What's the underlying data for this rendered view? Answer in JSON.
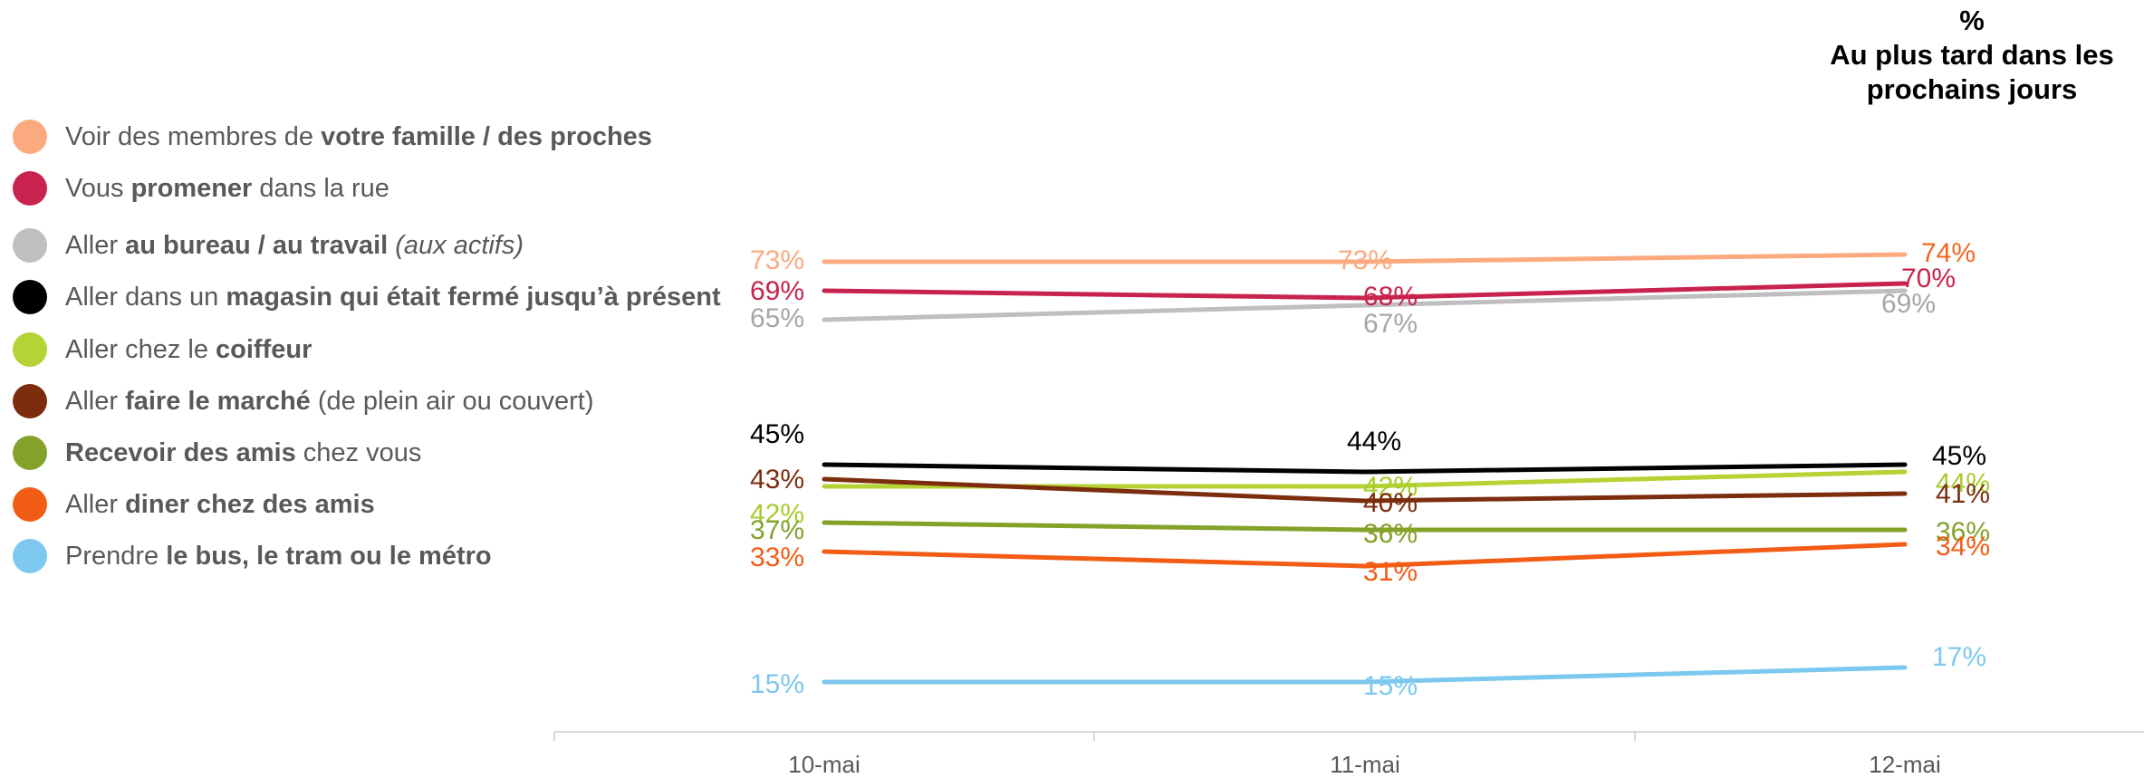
{
  "chart_data": {
    "type": "line",
    "title": "%",
    "subtitle": "Au plus tard dans les prochains jours",
    "categories": [
      "10-mai",
      "11-mai",
      "12-mai"
    ],
    "ylim": [
      0,
      80
    ],
    "grid": false,
    "legend_position": "left",
    "series": [
      {
        "name": "Voir des membres de votre famille / des proches",
        "name_parts": [
          [
            "Voir des membres de ",
            "normal"
          ],
          [
            "votre famille / des proches",
            "bold"
          ]
        ],
        "color": "#FBA97F",
        "values": [
          73,
          73,
          74
        ],
        "label_colors": [
          "#FBA97F",
          "#FBA97F",
          "#F4651E"
        ]
      },
      {
        "name": "Vous promener dans la rue",
        "name_parts": [
          [
            "Vous ",
            "normal"
          ],
          [
            "promener",
            "bold"
          ],
          [
            " dans la rue",
            "normal"
          ]
        ],
        "color": "#C8224E",
        "values": [
          69,
          68,
          70
        ],
        "label_colors": [
          "#C8224E",
          "#C8224E",
          "#C8224E"
        ]
      },
      {
        "name": "Aller au bureau / au travail (aux actifs)",
        "name_parts": [
          [
            "Aller ",
            "normal"
          ],
          [
            "au bureau / au travail",
            "bold"
          ],
          [
            " ",
            "normal"
          ],
          [
            "(aux actifs)",
            "italic"
          ]
        ],
        "color": "#BFBFBF",
        "values": [
          65,
          67,
          69
        ],
        "label_colors": [
          "#A6A6A6",
          "#A6A6A6",
          "#A6A6A6"
        ]
      },
      {
        "name": "Aller dans un magasin qui était fermé jusqu’à présent",
        "name_parts": [
          [
            "Aller dans un ",
            "normal"
          ],
          [
            "magasin qui était fermé jusqu’à présent",
            "bold"
          ]
        ],
        "color": "#000000",
        "values": [
          45,
          44,
          45
        ],
        "label_colors": [
          "#000000",
          "#000000",
          "#000000"
        ]
      },
      {
        "name": "Aller chez le coiffeur",
        "name_parts": [
          [
            "Aller chez le ",
            "normal"
          ],
          [
            "coiffeur",
            "bold"
          ]
        ],
        "color": "#B5D334",
        "values": [
          42,
          42,
          44
        ],
        "label_colors": [
          "#A9CB2C",
          "#A9CB2C",
          "#A9CB2C"
        ]
      },
      {
        "name": "Aller faire le marché (de plein air ou couvert)",
        "name_parts": [
          [
            "Aller ",
            "normal"
          ],
          [
            "faire le marché",
            "bold"
          ],
          [
            " (de plein air ou couvert)",
            "normal"
          ]
        ],
        "color": "#7B2D0E",
        "values": [
          43,
          40,
          41
        ],
        "label_colors": [
          "#7B2D0E",
          "#7B2D0E",
          "#7B2D0E"
        ]
      },
      {
        "name": "Recevoir des amis chez vous",
        "name_parts": [
          [
            "Recevoir des amis",
            "bold"
          ],
          [
            " chez vous",
            "normal"
          ]
        ],
        "color": "#84A12A",
        "values": [
          37,
          36,
          36
        ],
        "label_colors": [
          "#84A12A",
          "#84A12A",
          "#84A12A"
        ]
      },
      {
        "name": "Aller diner chez des amis",
        "name_parts": [
          [
            "Aller ",
            "normal"
          ],
          [
            "diner chez des amis",
            "bold"
          ]
        ],
        "color": "#F25C14",
        "values": [
          33,
          31,
          34
        ],
        "label_colors": [
          "#F25C14",
          "#F25C14",
          "#F25C14"
        ]
      },
      {
        "name": "Prendre le bus, le tram ou le métro",
        "name_parts": [
          [
            "Prendre ",
            "normal"
          ],
          [
            "le bus, le tram ou le métro",
            "bold"
          ]
        ],
        "color": "#7CC8EE",
        "values": [
          15,
          15,
          17
        ],
        "label_colors": [
          "#7CC8EE",
          "#7CC8EE",
          "#7CC8EE"
        ]
      }
    ]
  }
}
